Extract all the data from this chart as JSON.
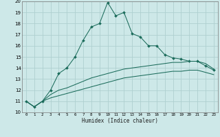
{
  "xlabel": "Humidex (Indice chaleur)",
  "background_color": "#cde8e8",
  "grid_color": "#aed0d0",
  "line_color": "#1a6b5a",
  "xlim": [
    -0.5,
    23.5
  ],
  "ylim": [
    10,
    20
  ],
  "x_main": [
    0,
    1,
    2,
    3,
    4,
    5,
    6,
    7,
    8,
    9,
    10,
    11,
    12,
    13,
    14,
    15,
    16,
    17,
    18,
    19,
    20,
    21,
    22,
    23
  ],
  "y_main": [
    11.0,
    10.5,
    11.0,
    12.0,
    13.5,
    14.0,
    15.0,
    16.5,
    17.7,
    18.0,
    19.9,
    18.7,
    19.0,
    17.1,
    16.8,
    16.0,
    16.0,
    15.2,
    14.9,
    14.8,
    14.6,
    14.6,
    14.2,
    13.8
  ],
  "x_lower1": [
    0,
    1,
    2,
    3,
    4,
    5,
    6,
    7,
    8,
    9,
    10,
    11,
    12,
    13,
    14,
    15,
    16,
    17,
    18,
    19,
    20,
    21,
    22,
    23
  ],
  "y_lower1": [
    11.0,
    10.5,
    11.0,
    11.6,
    12.0,
    12.2,
    12.5,
    12.8,
    13.1,
    13.3,
    13.5,
    13.7,
    13.9,
    14.0,
    14.1,
    14.2,
    14.3,
    14.4,
    14.5,
    14.5,
    14.6,
    14.6,
    14.4,
    13.9
  ],
  "x_lower2": [
    0,
    1,
    2,
    3,
    4,
    5,
    6,
    7,
    8,
    9,
    10,
    11,
    12,
    13,
    14,
    15,
    16,
    17,
    18,
    19,
    20,
    21,
    22,
    23
  ],
  "y_lower2": [
    11.0,
    10.5,
    11.0,
    11.3,
    11.5,
    11.7,
    11.9,
    12.1,
    12.3,
    12.5,
    12.7,
    12.9,
    13.1,
    13.2,
    13.3,
    13.4,
    13.5,
    13.6,
    13.7,
    13.7,
    13.8,
    13.8,
    13.6,
    13.4
  ],
  "xticks": [
    0,
    1,
    2,
    3,
    4,
    5,
    6,
    7,
    8,
    9,
    10,
    11,
    12,
    13,
    14,
    15,
    16,
    17,
    18,
    19,
    20,
    21,
    22,
    23
  ],
  "yticks": [
    10,
    11,
    12,
    13,
    14,
    15,
    16,
    17,
    18,
    19,
    20
  ]
}
